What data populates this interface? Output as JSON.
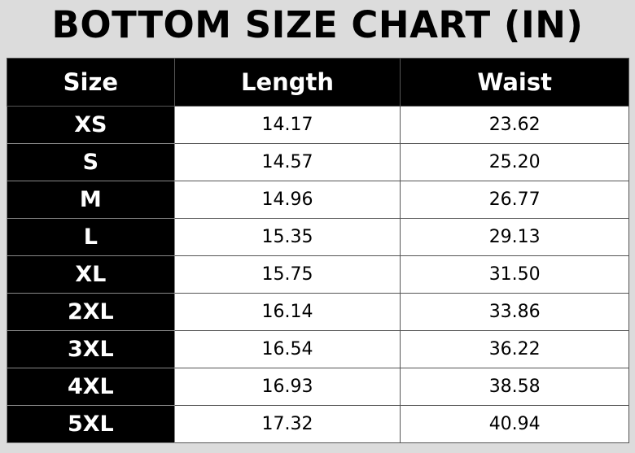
{
  "title": "BOTTOM SIZE CHART (IN)",
  "table": {
    "headers": [
      "Size",
      "Length",
      "Waist"
    ],
    "rows": [
      [
        "XS",
        "14.17",
        "23.62"
      ],
      [
        "S",
        "14.57",
        "25.20"
      ],
      [
        "M",
        "14.96",
        "26.77"
      ],
      [
        "L",
        "15.35",
        "29.13"
      ],
      [
        "XL",
        "15.75",
        "31.50"
      ],
      [
        "2XL",
        "16.14",
        "33.86"
      ],
      [
        "3XL",
        "16.54",
        "36.22"
      ],
      [
        "4XL",
        "16.93",
        "38.58"
      ],
      [
        "5XL",
        "17.32",
        "40.94"
      ]
    ]
  }
}
